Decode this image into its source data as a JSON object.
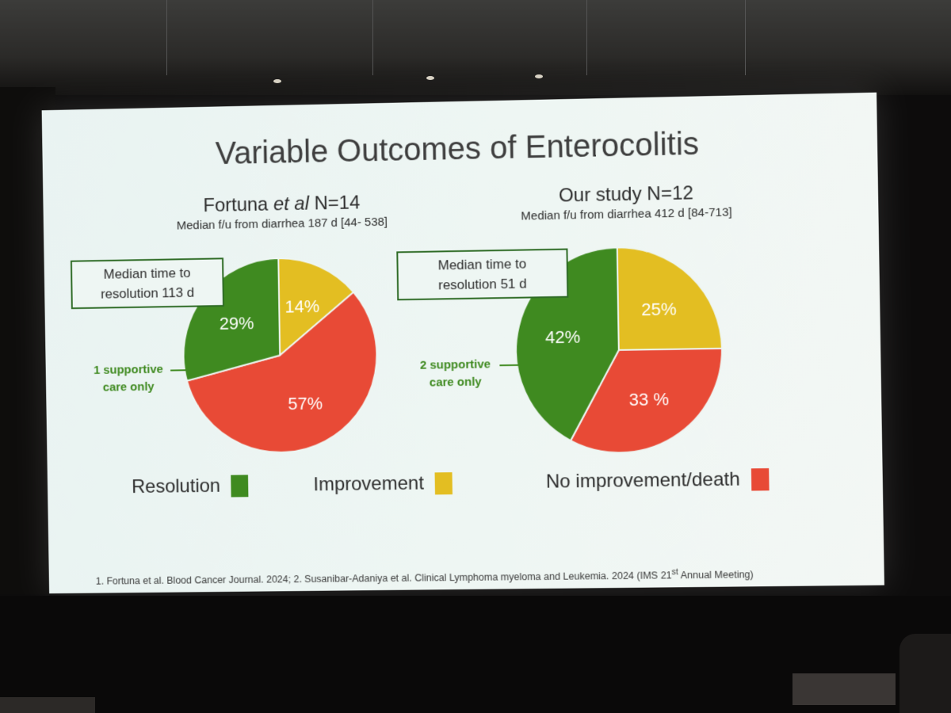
{
  "slide": {
    "title": "Variable Outcomes of Enterocolitis",
    "footnote_main": "1. Fortuna et al. Blood Cancer Journal. 2024; 2. Susanibar-Adaniya et al. Clinical Lymphoma myeloma and Leukemia. 2024 (IMS  21",
    "footnote_sup": "st",
    "footnote_end": " Annual Meeting)"
  },
  "studies": [
    {
      "title_pre": "Fortuna ",
      "title_italic": "et al",
      "title_post": " N=14",
      "subtitle": "Median f/u from diarrhea 187 d [44- 538]",
      "note_line1": "Median time to",
      "note_line2": "resolution 113 d",
      "side_line1": "1 supportive",
      "side_line2": "care only"
    },
    {
      "title_pre": "Our study N=12",
      "title_italic": "",
      "title_post": "",
      "subtitle": "Median f/u from diarrhea 412 d [84-713]",
      "note_line1": "Median time to",
      "note_line2": "resolution 51 d",
      "side_line1": "2 supportive",
      "side_line2": "care only"
    }
  ],
  "legend": [
    {
      "label": "Resolution",
      "color": "#3f8a20"
    },
    {
      "label": "Improvement",
      "color": "#e3be22"
    },
    {
      "label": "No improvement/death",
      "color": "#e84a36"
    }
  ],
  "chart_data": [
    {
      "type": "pie",
      "title": "Fortuna et al N=14",
      "slices": [
        {
          "name": "Improvement",
          "value": 14,
          "label": "14%",
          "color": "#e3be22"
        },
        {
          "name": "No improvement/death",
          "value": 57,
          "label": "57%",
          "color": "#e84a36"
        },
        {
          "name": "Resolution",
          "value": 29,
          "label": "29%",
          "color": "#3f8a20"
        }
      ]
    },
    {
      "type": "pie",
      "title": "Our study N=12",
      "slices": [
        {
          "name": "Improvement",
          "value": 25,
          "label": "25%",
          "color": "#e3be22"
        },
        {
          "name": "No improvement/death",
          "value": 33,
          "label": "33 %",
          "color": "#e84a36"
        },
        {
          "name": "Resolution",
          "value": 42,
          "label": "42%",
          "color": "#3f8a20"
        }
      ]
    }
  ]
}
